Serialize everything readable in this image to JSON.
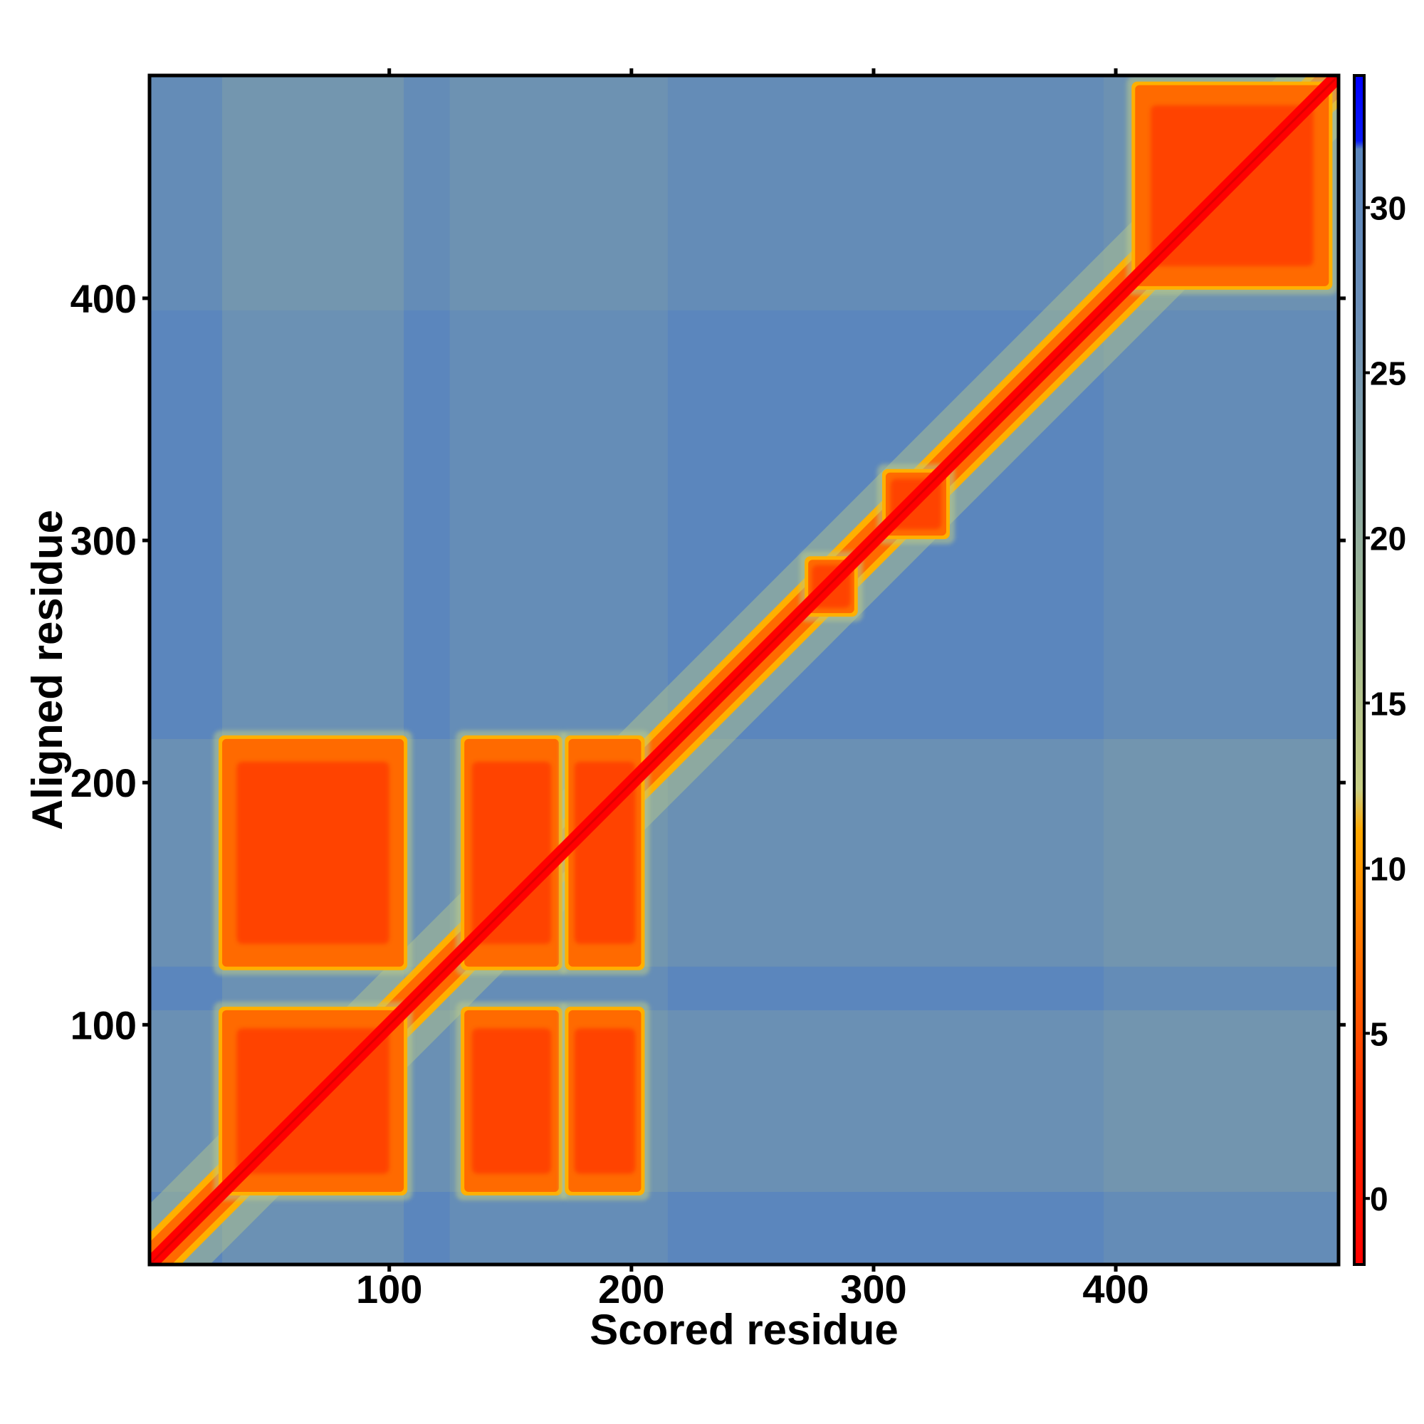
{
  "chart_data": {
    "type": "heatmap",
    "title": "",
    "xlabel": "Scored residue",
    "ylabel": "Aligned residue",
    "n_residues": 492,
    "xlim": [
      1,
      492
    ],
    "ylim": [
      1,
      492
    ],
    "x_ticks": [
      "100",
      "200",
      "300",
      "400"
    ],
    "y_ticks": [
      "100",
      "200",
      "300",
      "400"
    ],
    "colorbar": {
      "range": [
        -2,
        34
      ],
      "ticks": [
        "0",
        "5",
        "10",
        "15",
        "20",
        "25",
        "30"
      ],
      "colors": {
        "low": "#ff0000",
        "mid_low": "#ff6a00",
        "transition": "#ffb000",
        "mid": "#b9c98a",
        "high": "#5b86bd",
        "max": "#0000ff"
      }
    },
    "low_error_blocks": [
      {
        "x_range": [
          31,
          106
        ],
        "y_range": [
          31,
          106
        ]
      },
      {
        "x_range": [
          31,
          106
        ],
        "y_range": [
          124,
          218
        ]
      },
      {
        "x_range": [
          131,
          170
        ],
        "y_range": [
          31,
          106
        ]
      },
      {
        "x_range": [
          131,
          170
        ],
        "y_range": [
          124,
          218
        ]
      },
      {
        "x_range": [
          174,
          204
        ],
        "y_range": [
          31,
          106
        ]
      },
      {
        "x_range": [
          174,
          204
        ],
        "y_range": [
          124,
          218
        ]
      },
      {
        "x_range": [
          273,
          292
        ],
        "y_range": [
          270,
          292
        ]
      },
      {
        "x_range": [
          305,
          330
        ],
        "y_range": [
          302,
          328
        ]
      },
      {
        "x_range": [
          408,
          488
        ],
        "y_range": [
          405,
          488
        ]
      }
    ],
    "diagonal": "low error along x = y",
    "grid": false,
    "legend": "colorbar at right"
  }
}
